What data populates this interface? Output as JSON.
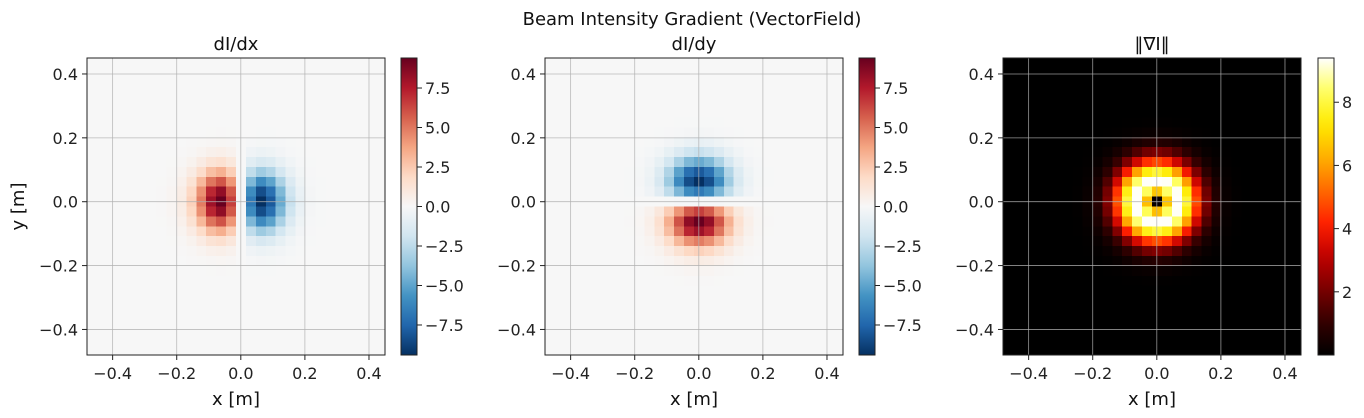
{
  "figure": {
    "suptitle": "Beam Intensity Gradient (VectorField)"
  },
  "colors": {
    "background": "#ffffff",
    "grid": "#b0b0b0",
    "diverging_map": [
      "#053061",
      "#2166ac",
      "#4393c3",
      "#92c5de",
      "#d1e5f0",
      "#f7f7f7",
      "#fddbc7",
      "#f4a582",
      "#d6604d",
      "#b2182b",
      "#67001f"
    ],
    "magnitude_map": [
      "#000000",
      "#330000",
      "#7a0000",
      "#c00000",
      "#ff2000",
      "#ff6a00",
      "#ffb000",
      "#ffea00",
      "#ffff60",
      "#ffffff"
    ]
  },
  "chart_data": [
    {
      "type": "heatmap",
      "title": "dI/dx",
      "field": "dIdx",
      "colormap": "RdBu_r",
      "xlabel": "x [m]",
      "ylabel": "y [m]",
      "xlim": [
        -0.48,
        0.45
      ],
      "ylim": [
        -0.48,
        0.45
      ],
      "xticks": [
        -0.4,
        -0.2,
        0.0,
        0.2,
        0.4
      ],
      "yticks": [
        -0.4,
        -0.2,
        0.0,
        0.2,
        0.4
      ],
      "xtick_labels": [
        "−0.4",
        "−0.2",
        "0.0",
        "0.2",
        "0.4"
      ],
      "ytick_labels": [
        "−0.4",
        "−0.2",
        "0.0",
        "0.2",
        "0.4"
      ],
      "grid": true,
      "colorbar": {
        "range": [
          -9.4,
          9.4
        ],
        "ticks": [
          -7.5,
          -5.0,
          -2.5,
          0.0,
          2.5,
          5.0,
          7.5
        ],
        "tick_labels": [
          "−7.5",
          "−5.0",
          "−2.5",
          "0.0",
          "2.5",
          "5.0",
          "7.5"
        ]
      },
      "grid_cells": 30,
      "extremes": {
        "max": 9.4,
        "max_at": [
          -0.065,
          0.0
        ],
        "min": -9.4,
        "min_at": [
          0.065,
          0.0
        ]
      }
    },
    {
      "type": "heatmap",
      "title": "dI/dy",
      "field": "dIdy",
      "colormap": "RdBu_r",
      "xlabel": "x [m]",
      "ylabel": "",
      "xlim": [
        -0.48,
        0.45
      ],
      "ylim": [
        -0.48,
        0.45
      ],
      "xticks": [
        -0.4,
        -0.2,
        0.0,
        0.2,
        0.4
      ],
      "yticks": [
        -0.4,
        -0.2,
        0.0,
        0.2,
        0.4
      ],
      "xtick_labels": [
        "−0.4",
        "−0.2",
        "0.0",
        "0.2",
        "0.4"
      ],
      "ytick_labels": [
        "−0.4",
        "−0.2",
        "0.0",
        "0.2",
        "0.4"
      ],
      "grid": true,
      "colorbar": {
        "range": [
          -9.4,
          9.4
        ],
        "ticks": [
          -7.5,
          -5.0,
          -2.5,
          0.0,
          2.5,
          5.0,
          7.5
        ],
        "tick_labels": [
          "−7.5",
          "−5.0",
          "−2.5",
          "0.0",
          "2.5",
          "5.0",
          "7.5"
        ]
      },
      "grid_cells": 30,
      "extremes": {
        "max": 9.4,
        "max_at": [
          0.0,
          -0.065
        ],
        "min": -9.4,
        "min_at": [
          0.0,
          0.065
        ]
      }
    },
    {
      "type": "heatmap",
      "title": "‖∇I‖",
      "field": "magnitude",
      "colormap": "hot",
      "xlabel": "x [m]",
      "ylabel": "",
      "xlim": [
        -0.48,
        0.45
      ],
      "ylim": [
        -0.48,
        0.45
      ],
      "xticks": [
        -0.4,
        -0.2,
        0.0,
        0.2,
        0.4
      ],
      "yticks": [
        -0.4,
        -0.2,
        0.0,
        0.2,
        0.4
      ],
      "xtick_labels": [
        "−0.4",
        "−0.2",
        "0.0",
        "0.2",
        "0.4"
      ],
      "ytick_labels": [
        "−0.4",
        "−0.2",
        "0.0",
        "0.2",
        "0.4"
      ],
      "grid": true,
      "colorbar": {
        "range": [
          0.0,
          9.4
        ],
        "ticks": [
          2,
          4,
          6,
          8
        ],
        "tick_labels": [
          "2",
          "4",
          "6",
          "8"
        ]
      },
      "grid_cells": 30,
      "extremes": {
        "max": 9.4,
        "ring_radius": 0.065,
        "min": 0.0,
        "min_at": [
          0.0,
          0.0
        ]
      }
    }
  ]
}
